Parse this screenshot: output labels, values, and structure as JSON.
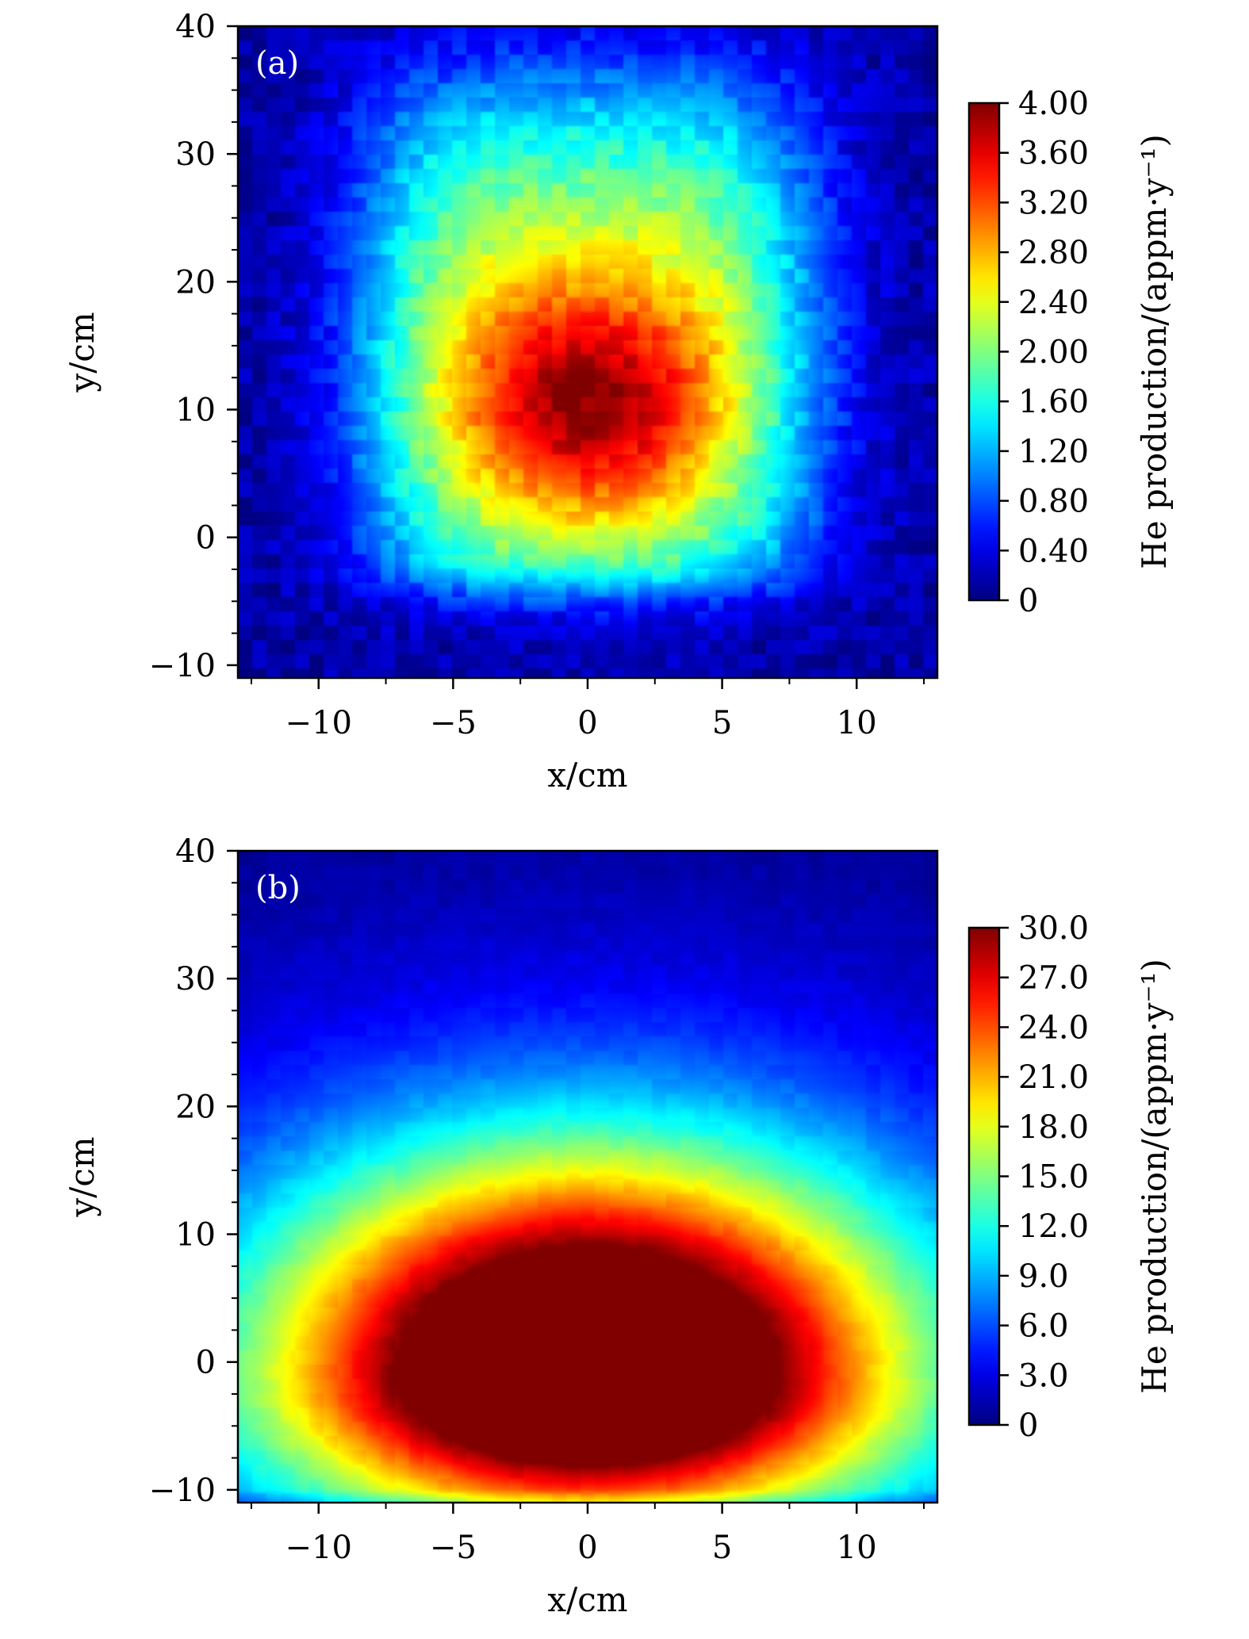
{
  "chart_data": [
    {
      "type": "heatmap",
      "panel_label": "(a)",
      "xlabel": "x/cm",
      "ylabel": "y/cm",
      "xlim": [
        -13,
        13
      ],
      "ylim": [
        -11,
        40
      ],
      "x_ticks": [
        -10,
        -5,
        0,
        5,
        10
      ],
      "x_tick_labels": [
        "−10",
        "−5",
        "0",
        "5",
        "10"
      ],
      "y_ticks": [
        -10,
        0,
        10,
        20,
        30,
        40
      ],
      "y_tick_labels": [
        "−10",
        "0",
        "10",
        "20",
        "30",
        "40"
      ],
      "colorbar": {
        "label": "He production/(appm·y⁻¹)",
        "min": 0,
        "max": 4.0,
        "ticks": [
          0,
          0.4,
          0.8,
          1.2,
          1.6,
          2.0,
          2.4,
          2.8,
          3.2,
          3.6,
          4.0
        ],
        "tick_labels": [
          "0",
          "0.40",
          "0.80",
          "1.20",
          "1.60",
          "2.00",
          "2.40",
          "2.80",
          "3.20",
          "3.60",
          "4.00"
        ]
      },
      "field": {
        "background": 0.15,
        "peak_center": [
          0,
          10
        ],
        "peak_value": 3.7,
        "core_halfwidth_x": 8.5,
        "core_y_range": [
          -4,
          36
        ],
        "noise": 0.18
      }
    },
    {
      "type": "heatmap",
      "panel_label": "(b)",
      "xlabel": "x/cm",
      "ylabel": "y/cm",
      "xlim": [
        -13,
        13
      ],
      "ylim": [
        -11,
        40
      ],
      "x_ticks": [
        -10,
        -5,
        0,
        5,
        10
      ],
      "x_tick_labels": [
        "−10",
        "−5",
        "0",
        "5",
        "10"
      ],
      "y_ticks": [
        -10,
        0,
        10,
        20,
        30,
        40
      ],
      "y_tick_labels": [
        "−10",
        "0",
        "10",
        "20",
        "30",
        "40"
      ],
      "colorbar": {
        "label": "He production/(appm·y⁻¹)",
        "min": 0,
        "max": 30.0,
        "ticks": [
          0,
          3,
          6,
          9,
          12,
          15,
          18,
          21,
          24,
          27,
          30
        ],
        "tick_labels": [
          "0",
          "3.0",
          "6.0",
          "9.0",
          "12.0",
          "15.0",
          "18.0",
          "21.0",
          "24.0",
          "27.0",
          "30.0"
        ]
      },
      "field": {
        "peak_center": [
          0,
          -1
        ],
        "peak_value": 34,
        "noise": 0.4
      }
    }
  ]
}
